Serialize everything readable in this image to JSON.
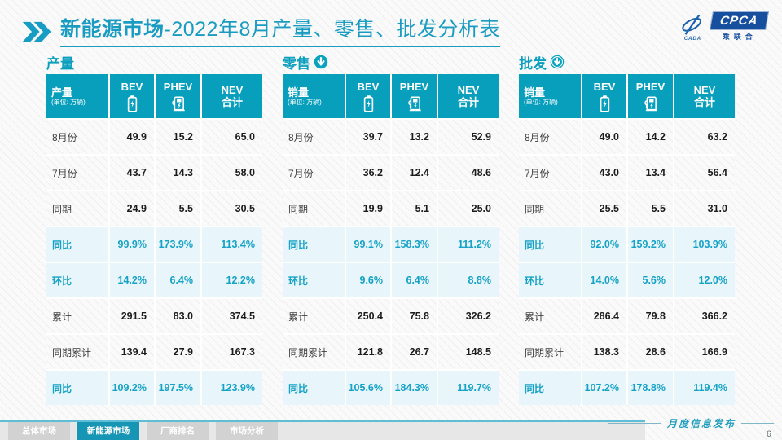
{
  "title": {
    "bold": "新能源市场",
    "rest": "-2022年8月产量、零售、批发分析表"
  },
  "logo": {
    "cada": "CADA",
    "cpca": "CPCA",
    "sub": "乘联合"
  },
  "watermark": "CPCA 乘联会",
  "tables": [
    {
      "section_label": "产量",
      "header": {
        "label": "产量",
        "unit": "(单位: 万辆)",
        "bev": "BEV",
        "phev": "PHEV",
        "nev_line1": "NEV",
        "nev_line2": "合计"
      },
      "rows": [
        {
          "label": "8月份",
          "values": [
            "49.9",
            "15.2",
            "65.0"
          ],
          "highlight": false
        },
        {
          "label": "7月份",
          "values": [
            "43.7",
            "14.3",
            "58.0"
          ],
          "highlight": false
        },
        {
          "label": "同期",
          "values": [
            "24.9",
            "5.5",
            "30.5"
          ],
          "highlight": false
        },
        {
          "label": "同比",
          "values": [
            "99.9%",
            "173.9%",
            "113.4%"
          ],
          "highlight": true
        },
        {
          "label": "环比",
          "values": [
            "14.2%",
            "6.4%",
            "12.2%"
          ],
          "highlight": true
        },
        {
          "label": "累计",
          "values": [
            "291.5",
            "83.0",
            "374.5"
          ],
          "highlight": false
        },
        {
          "label": "同期累计",
          "values": [
            "139.4",
            "27.9",
            "167.3"
          ],
          "highlight": false
        },
        {
          "label": "同比",
          "values": [
            "109.2%",
            "197.5%",
            "123.9%"
          ],
          "highlight": true
        }
      ]
    },
    {
      "section_label": "零售",
      "header": {
        "label": "销量",
        "unit": "(单位: 万辆)",
        "bev": "BEV",
        "phev": "PHEV",
        "nev_line1": "NEV",
        "nev_line2": "合计"
      },
      "rows": [
        {
          "label": "8月份",
          "values": [
            "39.7",
            "13.2",
            "52.9"
          ],
          "highlight": false
        },
        {
          "label": "7月份",
          "values": [
            "36.2",
            "12.4",
            "48.6"
          ],
          "highlight": false
        },
        {
          "label": "同期",
          "values": [
            "19.9",
            "5.1",
            "25.0"
          ],
          "highlight": false
        },
        {
          "label": "同比",
          "values": [
            "99.1%",
            "158.3%",
            "111.2%"
          ],
          "highlight": true
        },
        {
          "label": "环比",
          "values": [
            "9.6%",
            "6.4%",
            "8.8%"
          ],
          "highlight": true
        },
        {
          "label": "累计",
          "values": [
            "250.4",
            "75.8",
            "326.2"
          ],
          "highlight": false
        },
        {
          "label": "同期累计",
          "values": [
            "121.8",
            "26.7",
            "148.5"
          ],
          "highlight": false
        },
        {
          "label": "同比",
          "values": [
            "105.6%",
            "184.3%",
            "119.7%"
          ],
          "highlight": true
        }
      ]
    },
    {
      "section_label": "批发",
      "header": {
        "label": "销量",
        "unit": "(单位: 万辆)",
        "bev": "BEV",
        "phev": "PHEV",
        "nev_line1": "NEV",
        "nev_line2": "合计"
      },
      "rows": [
        {
          "label": "8月份",
          "values": [
            "49.0",
            "14.2",
            "63.2"
          ],
          "highlight": false
        },
        {
          "label": "7月份",
          "values": [
            "43.0",
            "13.4",
            "56.4"
          ],
          "highlight": false
        },
        {
          "label": "同期",
          "values": [
            "25.5",
            "5.5",
            "31.0"
          ],
          "highlight": false
        },
        {
          "label": "同比",
          "values": [
            "92.0%",
            "159.2%",
            "103.9%"
          ],
          "highlight": true
        },
        {
          "label": "环比",
          "values": [
            "14.0%",
            "5.6%",
            "12.0%"
          ],
          "highlight": true
        },
        {
          "label": "累计",
          "values": [
            "286.4",
            "79.8",
            "366.2"
          ],
          "highlight": false
        },
        {
          "label": "同期累计",
          "values": [
            "138.3",
            "28.6",
            "166.9"
          ],
          "highlight": false
        },
        {
          "label": "同比",
          "values": [
            "107.2%",
            "178.8%",
            "119.4%"
          ],
          "highlight": true
        }
      ]
    }
  ],
  "footer": {
    "tabs": [
      {
        "label": "总体市场",
        "active": false
      },
      {
        "label": "新能源市场",
        "active": true
      },
      {
        "label": "厂商排名",
        "active": false
      },
      {
        "label": "市场分析",
        "active": false
      }
    ],
    "publication": "月度信息发布",
    "page": "6"
  }
}
